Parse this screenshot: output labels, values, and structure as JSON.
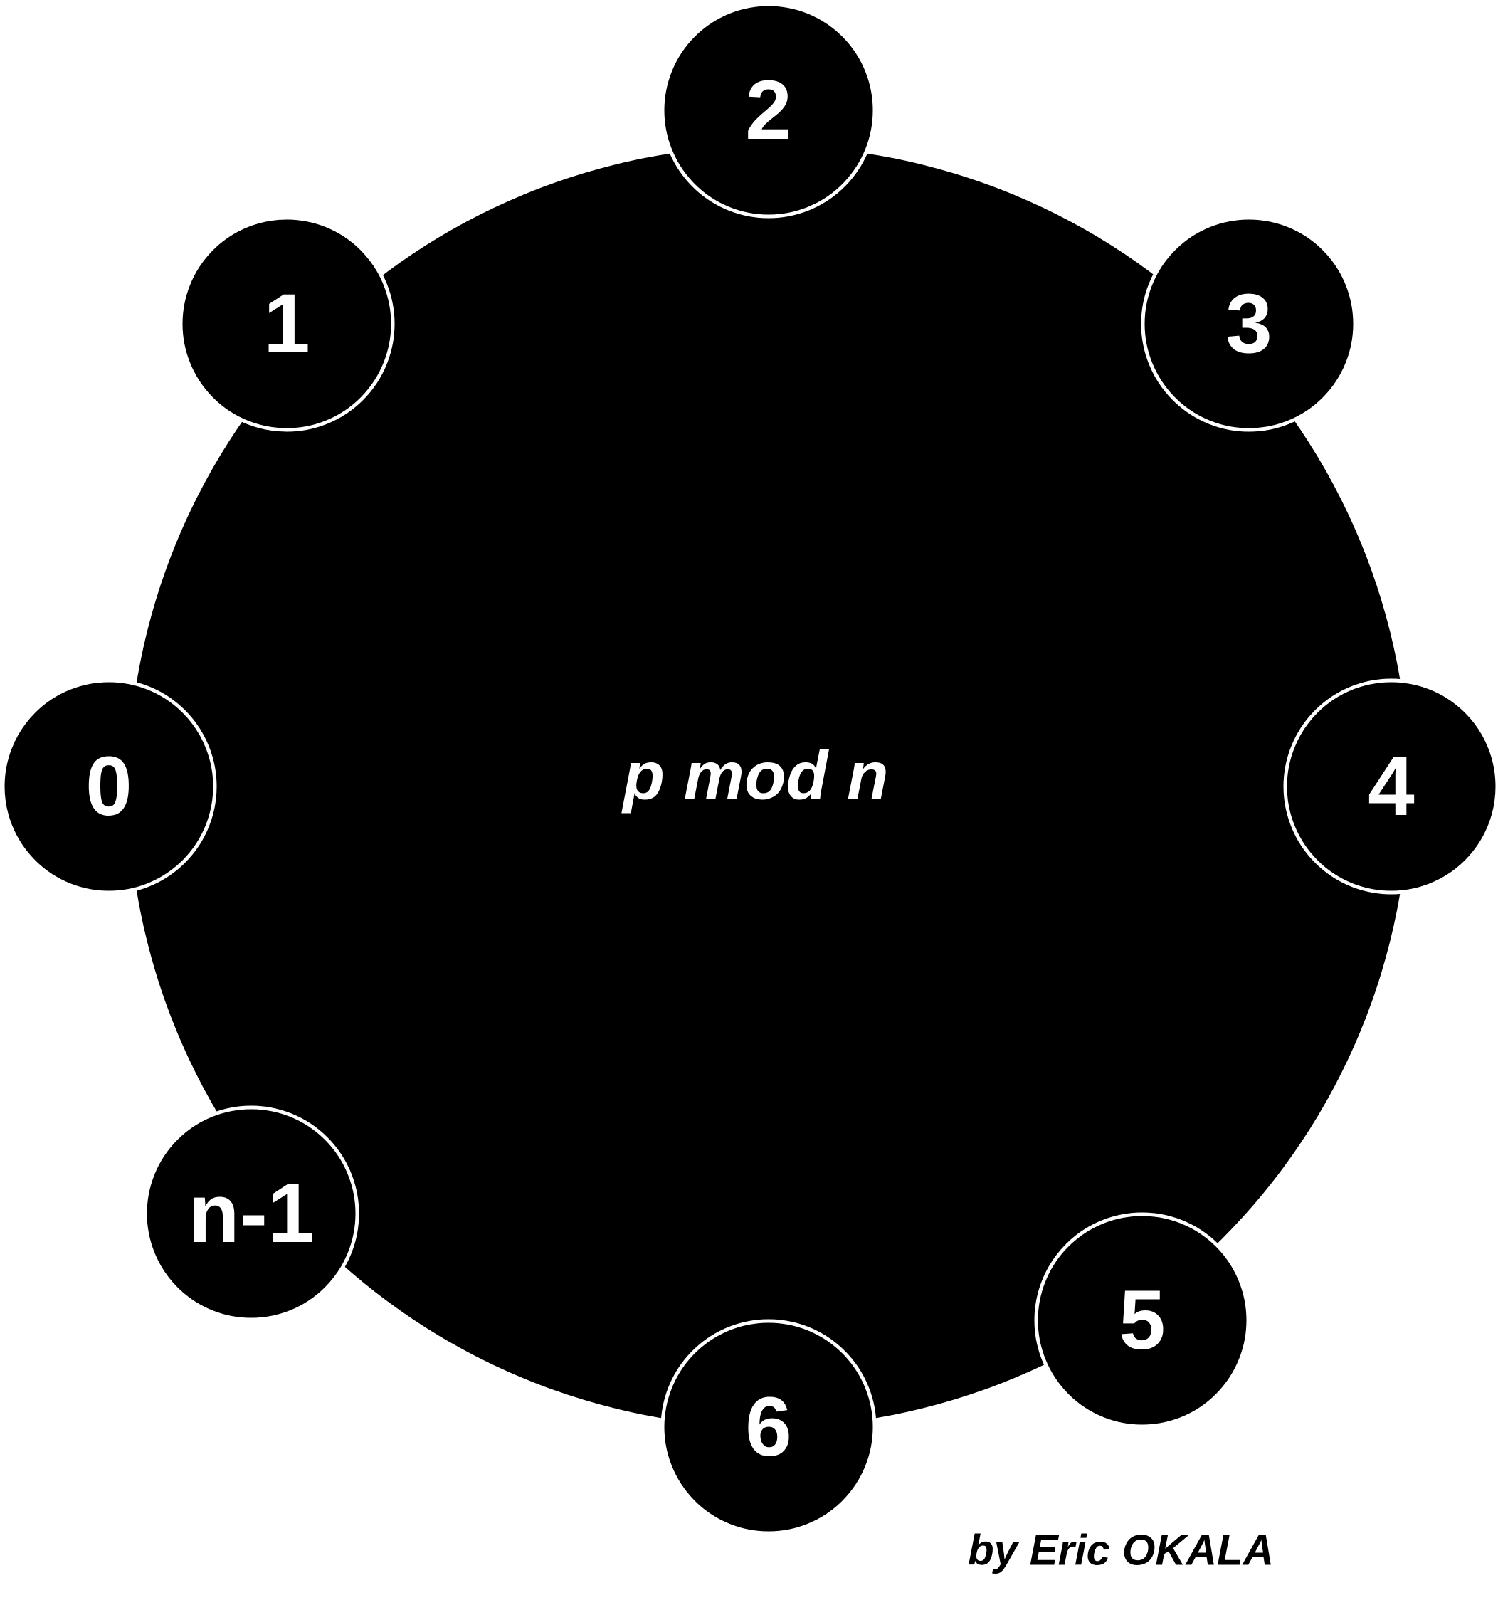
{
  "diagram": {
    "center_label": "p mod n",
    "author": "by Eric OKALA",
    "nodes": [
      {
        "id": "node-0",
        "label": "0"
      },
      {
        "id": "node-1",
        "label": "1"
      },
      {
        "id": "node-2",
        "label": "2"
      },
      {
        "id": "node-3",
        "label": "3"
      },
      {
        "id": "node-4",
        "label": "4"
      },
      {
        "id": "node-5",
        "label": "5"
      },
      {
        "id": "node-6",
        "label": "6"
      },
      {
        "id": "node-n-1",
        "label": "n-1"
      }
    ],
    "colors": {
      "fill": "#000000",
      "text": "#ffffff",
      "background": "#ffffff"
    }
  }
}
